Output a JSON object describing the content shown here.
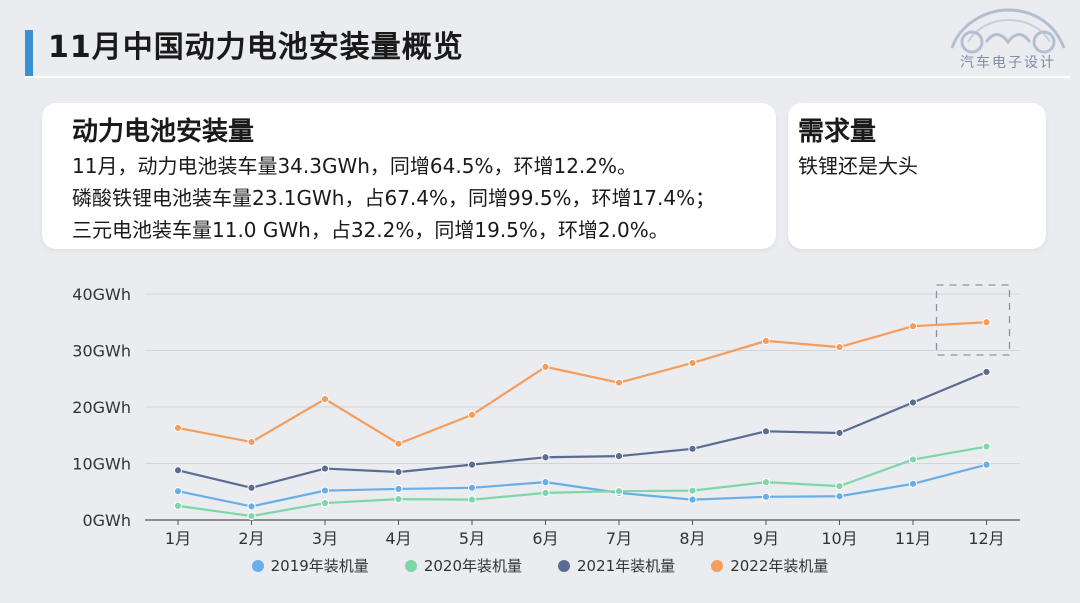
{
  "header": {
    "title": "11月中国动力电池安装量概览"
  },
  "logo": {
    "text": "汽车电子设计"
  },
  "card_left": {
    "title": "动力电池安装量",
    "lines": [
      "11月，动力电池装车量34.3GWh，同增64.5%，环增12.2%。",
      "磷酸铁锂电池装车量23.1GWh，占67.4%，同增99.5%，环增17.4%；",
      "三元电池装车量11.0 GWh，占32.2%，同增19.5%，环增2.0%。"
    ]
  },
  "card_right": {
    "title": "需求量",
    "lines": [
      "铁锂还是大头"
    ]
  },
  "chart_data": {
    "type": "line",
    "categories": [
      "1月",
      "2月",
      "3月",
      "4月",
      "5月",
      "6月",
      "7月",
      "8月",
      "9月",
      "10月",
      "11月",
      "12月"
    ],
    "y_ticks": [
      "0GWh",
      "10GWh",
      "20GWh",
      "30GWh",
      "40GWh"
    ],
    "ylim": [
      0,
      40
    ],
    "grid": true,
    "legend_position": "bottom",
    "highlight": "12月 (dashed box)",
    "series": [
      {
        "name": "2019年装机量",
        "color": "#6aaee8",
        "values": [
          5.1,
          2.4,
          5.2,
          5.5,
          5.7,
          6.7,
          4.8,
          3.6,
          4.1,
          4.2,
          6.4,
          9.8
        ]
      },
      {
        "name": "2020年装机量",
        "color": "#7ed6a9",
        "values": [
          2.5,
          0.7,
          3.0,
          3.7,
          3.6,
          4.8,
          5.1,
          5.2,
          6.7,
          6.0,
          10.7,
          13.0
        ]
      },
      {
        "name": "2021年装机量",
        "color": "#5b6c92",
        "values": [
          8.8,
          5.7,
          9.1,
          8.5,
          9.8,
          11.1,
          11.3,
          12.6,
          15.7,
          15.4,
          20.8,
          26.2
        ]
      },
      {
        "name": "2022年装机量",
        "color": "#f59d5c",
        "values": [
          16.3,
          13.8,
          21.4,
          13.5,
          18.6,
          27.1,
          24.3,
          27.8,
          31.7,
          30.6,
          34.3,
          35.0
        ]
      }
    ]
  }
}
